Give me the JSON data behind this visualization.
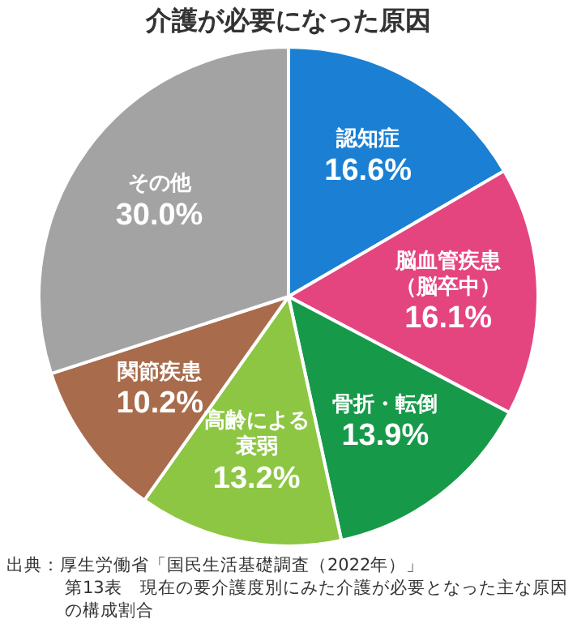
{
  "chart_data": {
    "type": "pie",
    "title": "介護が必要になった原因",
    "categories": [
      "認知症",
      "脳血管疾患（脳卒中）",
      "骨折・転倒",
      "高齢による衰弱",
      "関節疾患",
      "その他"
    ],
    "values": [
      16.6,
      16.1,
      13.9,
      13.2,
      10.2,
      30.0
    ],
    "value_labels": [
      "16.6%",
      "16.1%",
      "13.9%",
      "13.2%",
      "10.2%",
      "30.0%"
    ],
    "colors": [
      "#1b80d3",
      "#e5457f",
      "#17994a",
      "#8dc643",
      "#a86c4c",
      "#a3a3a3"
    ],
    "legend": false,
    "annotations": [
      "出典：厚生労働省「国民生活基礎調査（2022年）」",
      "第13表　現在の要介護度別にみた介護が必要となった主な原因の構成割合"
    ]
  }
}
